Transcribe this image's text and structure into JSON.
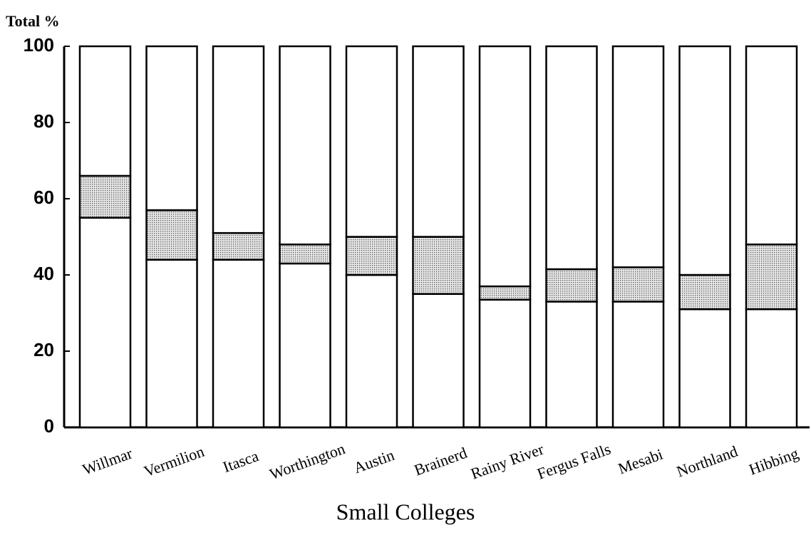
{
  "chart_data": {
    "type": "stacked_bar",
    "y_axis_label": "Total %",
    "x_axis_label": "Small Colleges",
    "categories": [
      "Willmar",
      "Vermilion",
      "Itasca",
      "Worthington",
      "Austin",
      "Brainerd",
      "Rainy River",
      "Fergus Falls",
      "Mesabi",
      "Northland",
      "Hibbing"
    ],
    "series": [
      {
        "color": "#ffffff",
        "values": [
          55,
          44,
          44,
          43,
          40,
          35,
          33.5,
          33,
          33,
          31,
          31
        ]
      },
      {
        "color": "#c4c4c4",
        "values": [
          11,
          13,
          7,
          5,
          10,
          15,
          3.5,
          8.5,
          9,
          9,
          17
        ]
      },
      {
        "color": "#ffffff",
        "values": [
          34,
          43,
          49,
          52,
          50,
          50,
          63,
          58.5,
          58,
          60,
          52
        ]
      }
    ],
    "ylim": [
      0,
      100
    ],
    "yticks": [
      0,
      20,
      40,
      60,
      80,
      100
    ],
    "grid": false
  }
}
